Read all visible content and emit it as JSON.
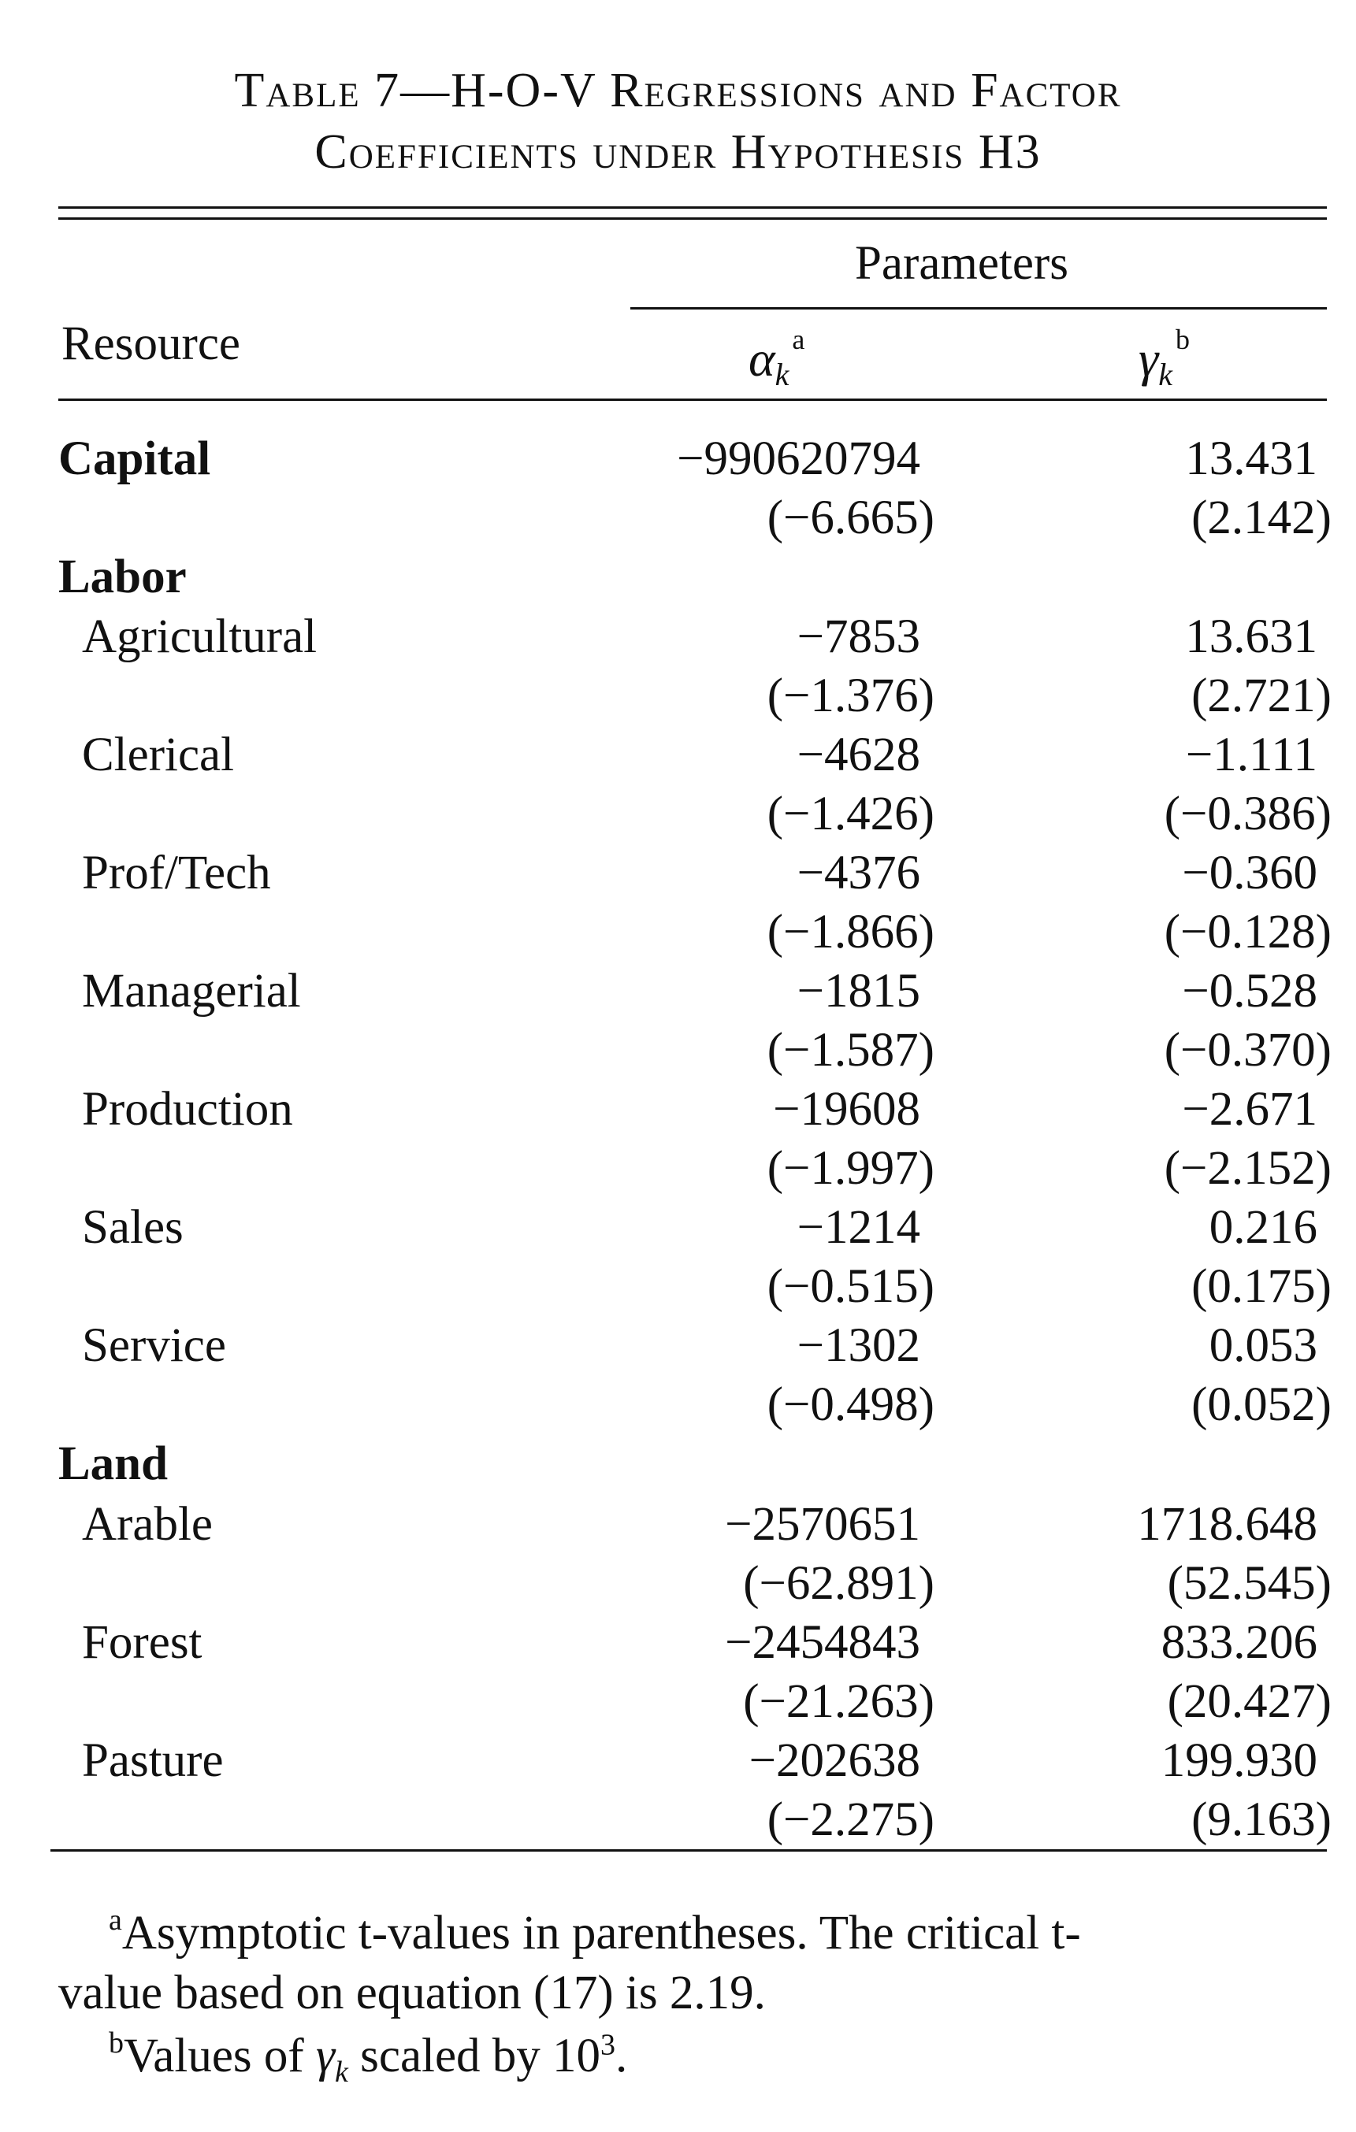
{
  "caption": {
    "line1": "Table 7—H-O-V Regressions and Factor",
    "line2": "Coefficients under Hypothesis H3"
  },
  "header": {
    "resource": "Resource",
    "parameters": "Parameters",
    "alpha": {
      "symbol": "α",
      "sub": "k",
      "sup": "a"
    },
    "gamma": {
      "symbol": "γ",
      "sub": "k",
      "sup": "b"
    }
  },
  "rows": [
    {
      "label": "Capital",
      "bold": true,
      "alpha": "−990620794",
      "gamma": "13.431",
      "alpha_t": "(−6.665)",
      "gamma_t": "(2.142)"
    },
    {
      "label": "Labor",
      "bold": true
    },
    {
      "label": "Agricultural",
      "alpha": "−7853",
      "gamma": "13.631",
      "alpha_t": "(−1.376)",
      "gamma_t": "(2.721)"
    },
    {
      "label": "Clerical",
      "alpha": "−4628",
      "gamma": "−1.111",
      "alpha_t": "(−1.426)",
      "gamma_t": "(−0.386)"
    },
    {
      "label": "Prof/Tech",
      "alpha": "−4376",
      "gamma": "−0.360",
      "alpha_t": "(−1.866)",
      "gamma_t": "(−0.128)"
    },
    {
      "label": "Managerial",
      "alpha": "−1815",
      "gamma": "−0.528",
      "alpha_t": "(−1.587)",
      "gamma_t": "(−0.370)"
    },
    {
      "label": "Production",
      "alpha": "−19608",
      "gamma": "−2.671",
      "alpha_t": "(−1.997)",
      "gamma_t": "(−2.152)"
    },
    {
      "label": "Sales",
      "alpha": "−1214",
      "gamma": "0.216",
      "alpha_t": "(−0.515)",
      "gamma_t": "(0.175)"
    },
    {
      "label": "Service",
      "alpha": "−1302",
      "gamma": "0.053",
      "alpha_t": "(−0.498)",
      "gamma_t": "(0.052)"
    },
    {
      "label": "Land",
      "bold": true
    },
    {
      "label": "Arable",
      "alpha": "−2570651",
      "gamma": "1718.648",
      "alpha_t": "(−62.891)",
      "gamma_t": "(52.545)"
    },
    {
      "label": "Forest",
      "alpha": "−2454843",
      "gamma": "833.206",
      "alpha_t": "(−21.263)",
      "gamma_t": "(20.427)"
    },
    {
      "label": "Pasture",
      "alpha": "−202638",
      "gamma": "199.930",
      "alpha_t": "(−2.275)",
      "gamma_t": "(9.163)"
    }
  ],
  "footnotes": {
    "a_mark": "a",
    "a_line1": "Asymptotic t-values in parentheses. The critical t-",
    "a_line2": "value based on equation (17) is 2.19.",
    "b_mark": "b",
    "b_text_pre": "Values of ",
    "b_symbol": "γ",
    "b_sub": "k",
    "b_text_post": " scaled by 10",
    "b_exp": "3",
    "b_end": "."
  }
}
